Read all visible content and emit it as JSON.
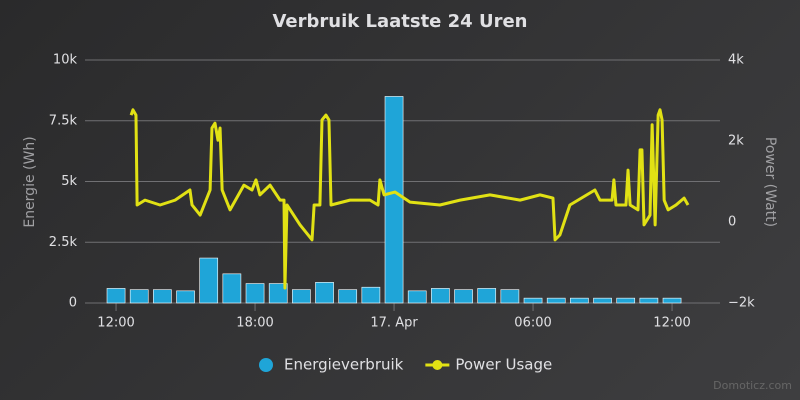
{
  "chart_data": {
    "type": "bar-line",
    "title": "Verbruik Laatste 24 Uren",
    "y_label": "Energie (Wh)",
    "y2_label": "Power (Watt)",
    "credit": "Domoticz.com",
    "xlim": [
      10.66,
      38.07
    ],
    "xticks": [
      {
        "value": 12,
        "label": "12:00"
      },
      {
        "value": 18,
        "label": "18:00"
      },
      {
        "value": 24,
        "label": "17. Apr"
      },
      {
        "value": 30,
        "label": "06:00"
      },
      {
        "value": 36,
        "label": "12:00"
      }
    ],
    "ylim": [
      0,
      10000
    ],
    "yticks": [
      0,
      {
        "value": 2500,
        "label": "2.5k"
      },
      {
        "value": 5000,
        "label": "5k"
      },
      {
        "value": 7500,
        "label": "7.5k"
      },
      {
        "value": 10000,
        "label": "10k"
      }
    ],
    "y2lim": [
      -2000,
      4000
    ],
    "y2ticks": [
      {
        "value": -2000,
        "label": "−2k"
      },
      0,
      {
        "value": 2000,
        "label": "2k"
      },
      {
        "value": 4000,
        "label": "4k"
      }
    ],
    "grid": true,
    "legend": "bottom",
    "series": [
      {
        "name": "Energieverbruik",
        "type": "bar",
        "color": "#1fa5d8",
        "x": [
          12,
          13,
          14,
          15,
          16,
          17,
          18,
          19,
          20,
          21,
          22,
          23,
          24,
          25,
          26,
          27,
          28,
          29,
          30,
          31,
          32,
          33,
          34,
          35,
          36
        ],
        "values": [
          600,
          550,
          550,
          500,
          1850,
          1200,
          800,
          800,
          550,
          850,
          550,
          650,
          8500,
          500,
          600,
          550,
          600,
          550,
          200,
          200,
          200,
          200,
          200,
          200,
          200
        ]
      },
      {
        "name": "Power Usage",
        "type": "line",
        "axis": "y2",
        "color": "#e1e114",
        "x": [
          12.65,
          12.73,
          12.86,
          12.91,
          13.25,
          13.9,
          14.55,
          15.19,
          15.28,
          15.63,
          16.06,
          16.14,
          16.27,
          16.4,
          16.49,
          16.58,
          16.92,
          17.52,
          17.87,
          18.04,
          18.21,
          18.65,
          19.08,
          19.25,
          19.29,
          19.38,
          19.94,
          20.46,
          20.55,
          20.8,
          20.89,
          21.06,
          21.19,
          21.28,
          22.1,
          22.96,
          23.31,
          23.39,
          23.57,
          24.04,
          24.69,
          25.98,
          26.85,
          28.14,
          29.44,
          30.3,
          30.86,
          30.95,
          31.16,
          31.59,
          32.67,
          32.89,
          33.41,
          33.49,
          33.58,
          34.01,
          34.1,
          34.19,
          34.53,
          34.62,
          34.7,
          34.79,
          35.05,
          35.14,
          35.27,
          35.4,
          35.48,
          35.57,
          35.66,
          35.83,
          36.17,
          36.52,
          36.69
        ],
        "values": [
          2640,
          2770,
          2640,
          420,
          540,
          420,
          540,
          790,
          420,
          170,
          790,
          2320,
          2440,
          2020,
          2320,
          790,
          300,
          910,
          790,
          1040,
          670,
          910,
          540,
          540,
          -1630,
          420,
          -70,
          -440,
          420,
          420,
          2520,
          2640,
          2520,
          420,
          540,
          540,
          420,
          1040,
          670,
          740,
          490,
          420,
          540,
          670,
          540,
          670,
          590,
          -440,
          -320,
          420,
          790,
          540,
          540,
          1040,
          420,
          420,
          1280,
          420,
          300,
          1780,
          1780,
          -70,
          170,
          2400,
          -70,
          2640,
          2770,
          2520,
          540,
          300,
          420,
          590,
          420
        ]
      }
    ]
  }
}
